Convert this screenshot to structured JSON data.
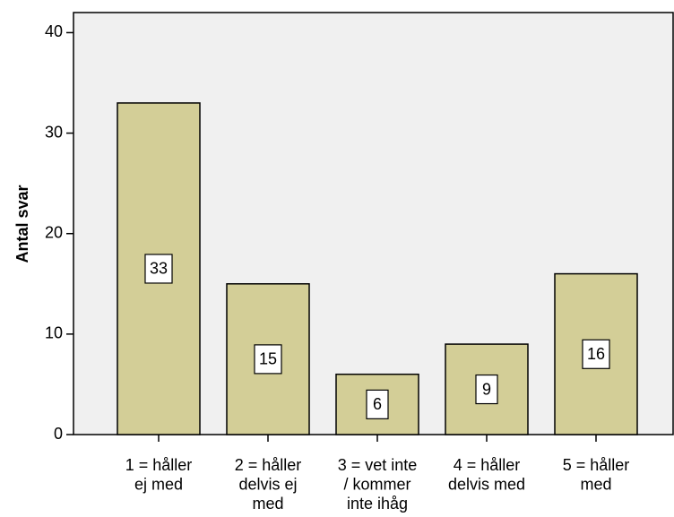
{
  "chart_data": {
    "type": "bar",
    "ylabel": "Antal svar",
    "categories": [
      "1 = håller\nej med",
      "2 = håller\ndelvis ej\nmed",
      "3 = vet inte\n/ kommer\ninte ihåg",
      "4 = håller\ndelvis med",
      "5 = håller\nmed"
    ],
    "values": [
      33,
      15,
      6,
      9,
      16
    ],
    "color": "#d3ce97",
    "ylim": [
      0,
      42
    ],
    "yticks": [
      0,
      10,
      20,
      30,
      40
    ],
    "grid": false
  }
}
